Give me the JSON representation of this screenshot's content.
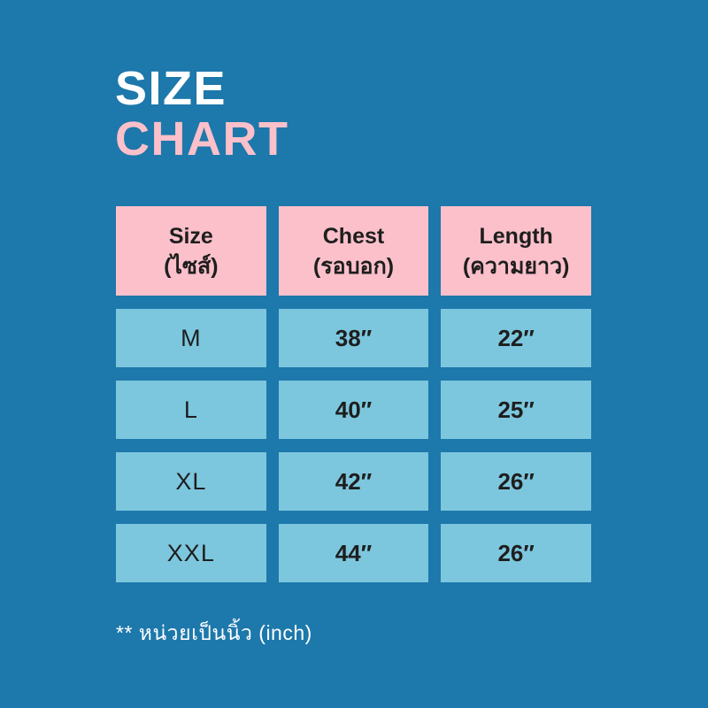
{
  "colors": {
    "bg": "#1d78ab",
    "pink": "#fbc0ca",
    "cell": "#7cc7de",
    "ink": "#1e1e1e",
    "white": "#ffffff"
  },
  "title": {
    "line1": "SIZE",
    "line2": "CHART"
  },
  "table": {
    "headers": [
      {
        "en": "Size",
        "th": "(ไซส์)"
      },
      {
        "en": "Chest",
        "th": "(รอบอก)"
      },
      {
        "en": "Length",
        "th": "(ความยาว)"
      }
    ],
    "rows": [
      {
        "size": "M",
        "chest": "38″",
        "length": "22″"
      },
      {
        "size": "L",
        "chest": "40″",
        "length": "25″"
      },
      {
        "size": "XL",
        "chest": "42″",
        "length": "26″"
      },
      {
        "size": "XXL",
        "chest": "44″",
        "length": "26″"
      }
    ]
  },
  "footnote": {
    "text": "** หน่วยเป็นนิ้ว (inch)"
  },
  "chart_data": {
    "type": "table",
    "title": "SIZE CHART",
    "columns": [
      "Size (ไซส์)",
      "Chest (รอบอก)",
      "Length (ความยาว)"
    ],
    "rows": [
      [
        "M",
        "38″",
        "22″"
      ],
      [
        "L",
        "40″",
        "25″"
      ],
      [
        "XL",
        "42″",
        "26″"
      ],
      [
        "XXL",
        "44″",
        "26″"
      ]
    ],
    "units": "inch",
    "note": "** หน่วยเป็นนิ้ว (inch)",
    "layout_hints": {
      "header_bg": "#fbc0ca",
      "cell_bg": "#7cc7de",
      "background": "#1d78ab",
      "grid": "separated-cells"
    }
  }
}
